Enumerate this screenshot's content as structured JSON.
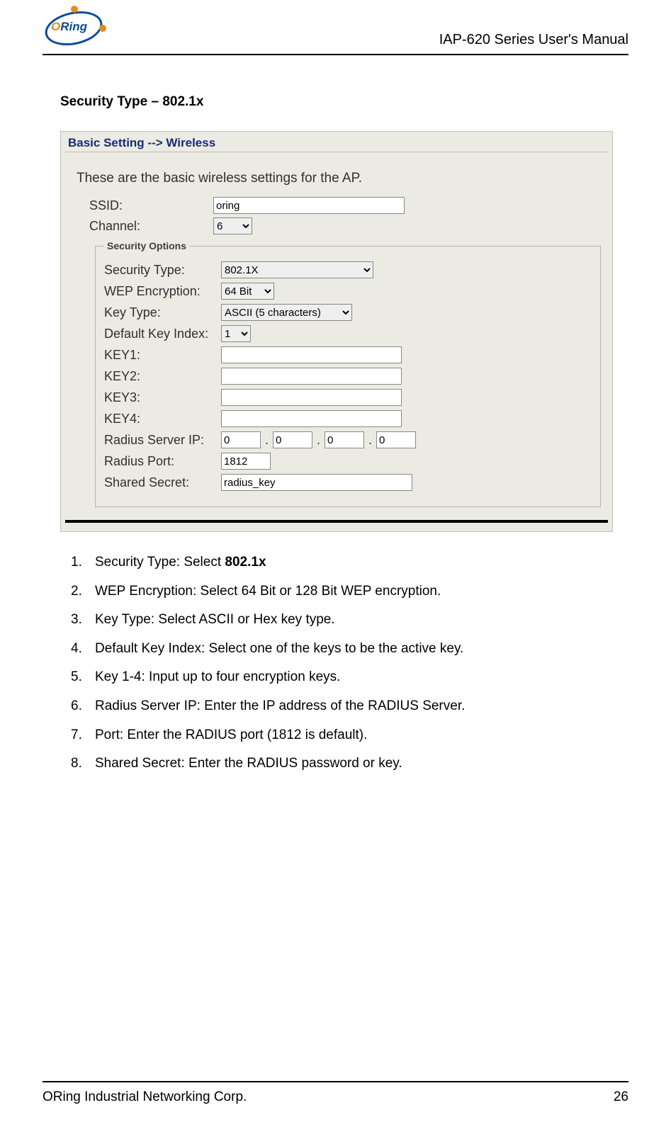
{
  "header": {
    "manual_title": "IAP-620 Series User's Manual",
    "logo_text_1": "O",
    "logo_text_2": "Ring"
  },
  "section": {
    "title": "Security Type – 802.1x"
  },
  "screenshot": {
    "breadcrumb": "Basic Setting --> Wireless",
    "intro": "These are the basic wireless settings for the AP.",
    "labels": {
      "ssid": "SSID:",
      "channel": "Channel:",
      "security_legend": "Security Options",
      "security_type": "Security Type:",
      "wep_encryption": "WEP Encryption:",
      "key_type": "Key Type:",
      "default_key_index": "Default Key Index:",
      "key1": "KEY1:",
      "key2": "KEY2:",
      "key3": "KEY3:",
      "key4": "KEY4:",
      "radius_ip": "Radius Server IP:",
      "radius_port": "Radius Port:",
      "shared_secret": "Shared Secret:"
    },
    "values": {
      "ssid": "oring",
      "channel": "6",
      "security_type": "802.1X",
      "wep_encryption": "64 Bit",
      "key_type": "ASCII (5 characters)",
      "default_key_index": "1",
      "key1": "",
      "key2": "",
      "key3": "",
      "key4": "",
      "ip_oct1": "0",
      "ip_oct2": "0",
      "ip_oct3": "0",
      "ip_oct4": "0",
      "radius_port": "1812",
      "shared_secret": "radius_key"
    },
    "colors": {
      "panel_bg": "#ebebe3",
      "crumb_color": "#1a2a7a",
      "text_color": "#303030",
      "border_color": "#b5b5ac"
    }
  },
  "instructions": [
    {
      "num": "1.",
      "prefix": "Security Type: Select ",
      "bold": "802.1x",
      "suffix": ""
    },
    {
      "num": "2.",
      "prefix": "WEP Encryption: Select 64 Bit or 128 Bit WEP encryption.",
      "bold": "",
      "suffix": ""
    },
    {
      "num": "3.",
      "prefix": "Key Type: Select ASCII or Hex key type.",
      "bold": "",
      "suffix": ""
    },
    {
      "num": "4.",
      "prefix": "Default Key Index: Select one of the keys to be the active key.",
      "bold": "",
      "suffix": ""
    },
    {
      "num": "5.",
      "prefix": "Key 1-4: Input up to four encryption keys.",
      "bold": "",
      "suffix": ""
    },
    {
      "num": "6.",
      "prefix": "Radius Server IP: Enter the IP address of the RADIUS Server.",
      "bold": "",
      "suffix": ""
    },
    {
      "num": "7.",
      "prefix": "Port: Enter the RADIUS port (1812 is default).",
      "bold": "",
      "suffix": ""
    },
    {
      "num": "8.",
      "prefix": "Shared Secret: Enter the RADIUS password or key.",
      "bold": "",
      "suffix": ""
    }
  ],
  "footer": {
    "company": "ORing Industrial Networking Corp.",
    "page": "26"
  }
}
